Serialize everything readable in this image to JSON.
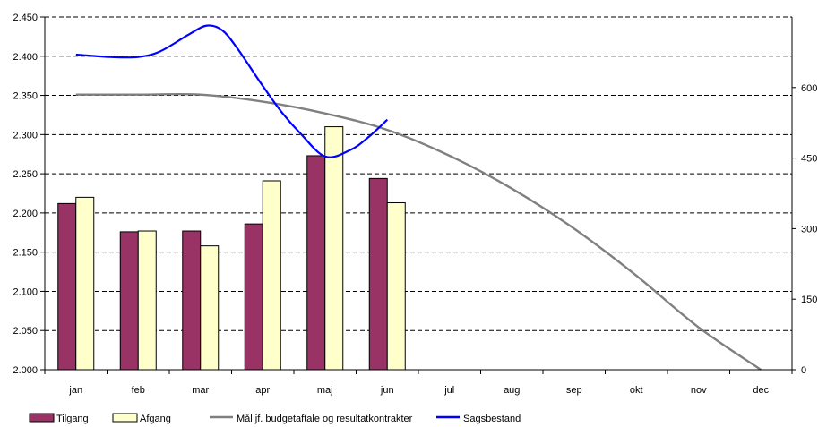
{
  "chart_data": {
    "type": "bar",
    "categories": [
      "jan",
      "feb",
      "mar",
      "apr",
      "maj",
      "jun",
      "jul",
      "aug",
      "sep",
      "okt",
      "nov",
      "dec"
    ],
    "y_left": {
      "ticks": [
        "2.000",
        "2.050",
        "2.100",
        "2.150",
        "2.200",
        "2.250",
        "2.300",
        "2.350",
        "2.400",
        "2.450"
      ],
      "range": [
        2000,
        2450
      ]
    },
    "y_right": {
      "ticks": [
        "0",
        "150",
        "300",
        "450",
        "600"
      ],
      "range": [
        0,
        750
      ]
    },
    "grid": true,
    "bar_series": [
      {
        "name": "Tilgang",
        "color": "#993366",
        "values": [
          2212,
          2176,
          2177,
          2186,
          2273,
          2244
        ]
      },
      {
        "name": "Afgang",
        "color": "#ffffcc",
        "values": [
          2220,
          2177,
          2158,
          2241,
          2310,
          2213
        ]
      }
    ],
    "line_series": [
      {
        "name": "Mål jf. budgetaftale og resultatkontrakter",
        "color": "#808080",
        "axis": "right",
        "values": [
          585,
          585,
          585,
          570,
          545,
          510,
          455,
          385,
          300,
          200,
          90,
          0
        ]
      },
      {
        "name": "Sagsbestand",
        "color": "#0000ff",
        "axis": "left",
        "points": [
          [
            0.0,
            2402
          ],
          [
            0.55,
            2399
          ],
          [
            1.0,
            2399
          ],
          [
            1.35,
            2406
          ],
          [
            1.8,
            2427
          ],
          [
            2.1,
            2439
          ],
          [
            2.35,
            2433
          ],
          [
            2.6,
            2409
          ],
          [
            3.0,
            2362
          ],
          [
            3.3,
            2329
          ],
          [
            3.6,
            2302
          ],
          [
            4.0,
            2272
          ],
          [
            4.4,
            2280
          ],
          [
            4.7,
            2297
          ],
          [
            5.0,
            2319
          ]
        ]
      }
    ],
    "legend": {
      "placement": "bottom",
      "items": [
        {
          "label": "Tilgang",
          "kind": "bar",
          "color": "#993366"
        },
        {
          "label": "Afgang",
          "kind": "bar",
          "color": "#ffffcc"
        },
        {
          "label": "Mål jf. budgetaftale og resultatkontrakter",
          "kind": "line",
          "color": "#808080"
        },
        {
          "label": "Sagsbestand",
          "kind": "line",
          "color": "#0000ff"
        }
      ]
    }
  }
}
